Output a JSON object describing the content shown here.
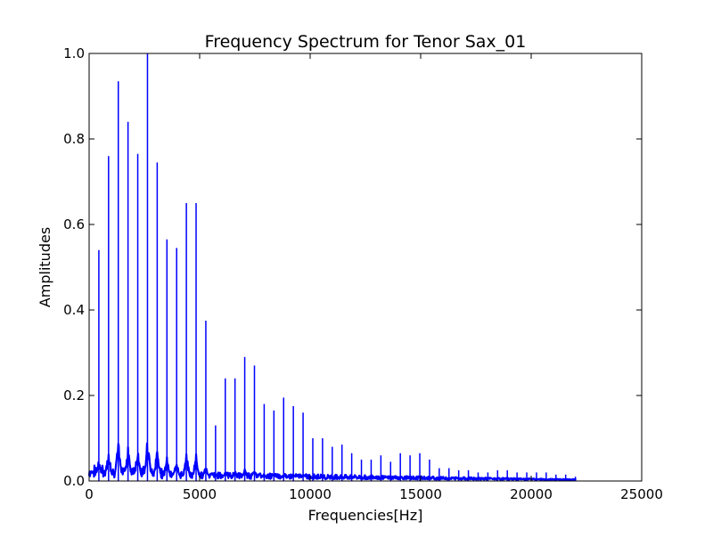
{
  "chart_data": {
    "type": "line",
    "title": "Frequency Spectrum for Tenor Sax_01",
    "xlabel": "Frequencies[Hz]",
    "ylabel": "Amplitudes",
    "xlim": [
      0,
      25000
    ],
    "ylim": [
      0,
      1.0
    ],
    "xticks": [
      0,
      5000,
      10000,
      15000,
      20000,
      25000
    ],
    "xtick_labels": [
      "0",
      "5000",
      "10000",
      "15000",
      "20000",
      "25000"
    ],
    "yticks": [
      0.0,
      0.2,
      0.4,
      0.6,
      0.8,
      1.0
    ],
    "ytick_labels": [
      "0.0",
      "0.2",
      "0.4",
      "0.6",
      "0.8",
      "1.0"
    ],
    "grid": false,
    "line_color": "#0000ff",
    "data_end_hz": 22050,
    "series": [
      {
        "peak_frequencies_hz": [
          440,
          880,
          1320,
          1760,
          2200,
          2640,
          3080,
          3520,
          3960,
          4400,
          4840,
          5280,
          5720,
          6160,
          6600,
          7040,
          7480,
          7920,
          8360,
          8800,
          9240,
          9680,
          10120,
          10560,
          11000,
          11440,
          11880,
          12320,
          12760,
          13200,
          13640,
          14080,
          14520,
          14960,
          15400,
          15840,
          16280,
          16720,
          17160,
          17600,
          18040,
          18480,
          18920,
          19360,
          19800,
          20240,
          20680,
          21120,
          21560,
          22000
        ],
        "peak_amplitudes": [
          0.54,
          0.76,
          0.935,
          0.84,
          0.765,
          1.0,
          0.745,
          0.565,
          0.545,
          0.65,
          0.65,
          0.375,
          0.13,
          0.24,
          0.24,
          0.29,
          0.27,
          0.18,
          0.165,
          0.195,
          0.175,
          0.16,
          0.1,
          0.1,
          0.08,
          0.085,
          0.065,
          0.05,
          0.05,
          0.06,
          0.045,
          0.065,
          0.06,
          0.065,
          0.05,
          0.03,
          0.03,
          0.025,
          0.025,
          0.02,
          0.02,
          0.025,
          0.025,
          0.02,
          0.02,
          0.02,
          0.02,
          0.015,
          0.015,
          0.01
        ]
      }
    ]
  }
}
